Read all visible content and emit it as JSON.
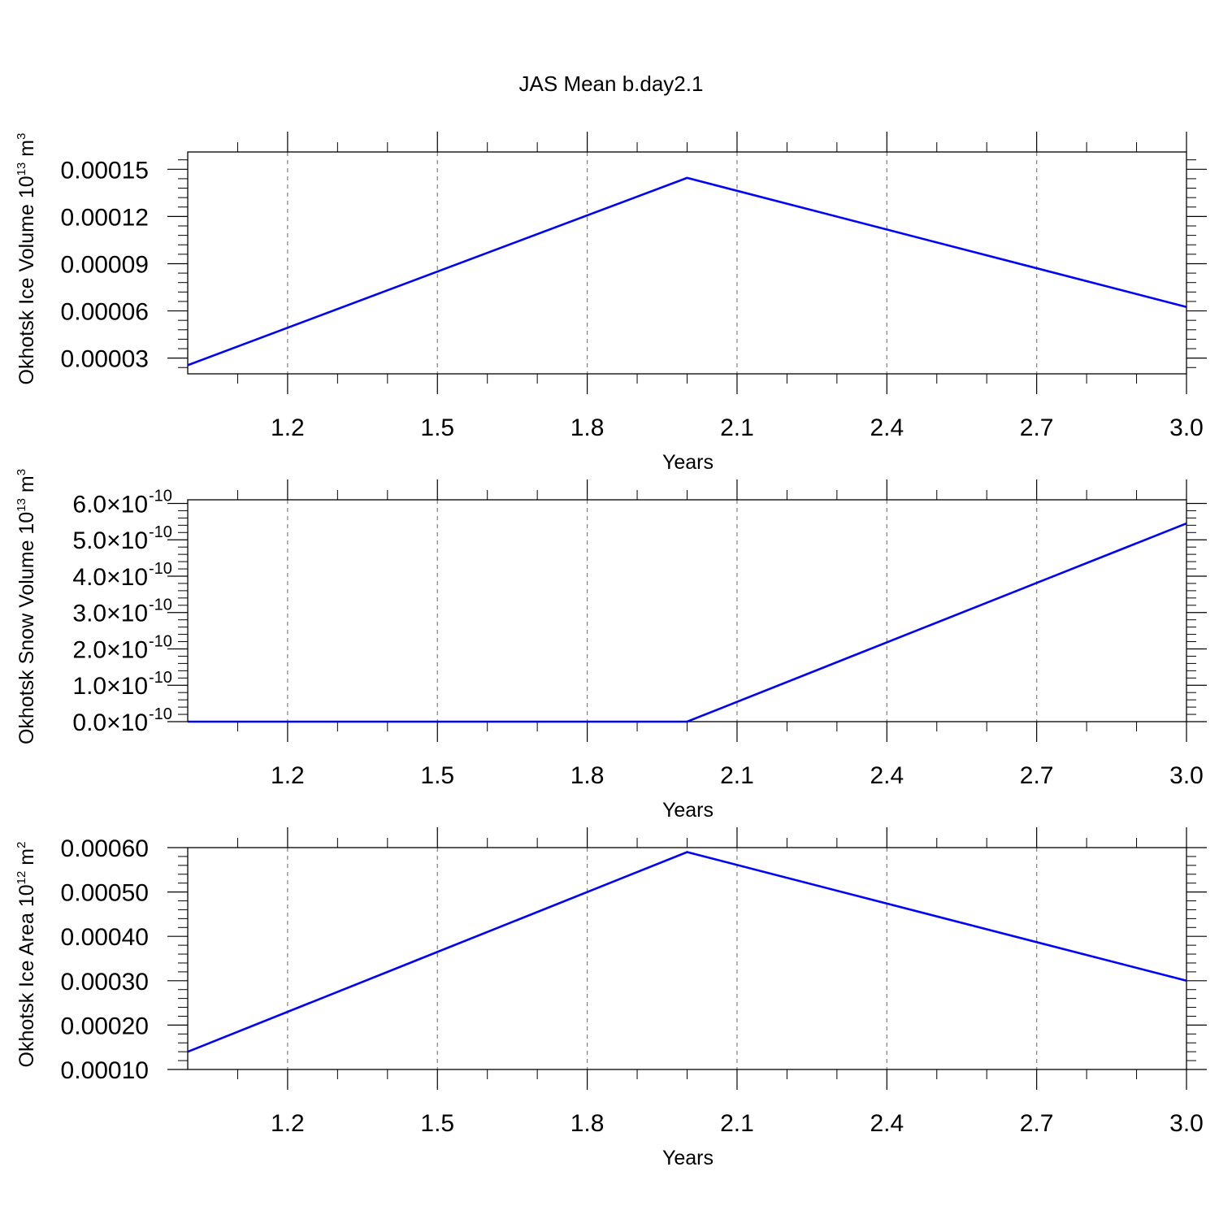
{
  "title": "JAS Mean b.day2.1",
  "colors": {
    "line": "#0000ff",
    "axis": "#000000",
    "grid": "#808080"
  },
  "chart_data": [
    {
      "type": "line",
      "xlabel": "Years",
      "ylabel_main": "Okhotsk Ice Volume 10",
      "ylabel_exp": "13",
      "ylabel_unit": " m",
      "ylabel_unit_exp": "3",
      "xlim": [
        1.0,
        3.0
      ],
      "ylim": [
        2e-05,
        0.000161
      ],
      "x_ticks": [
        1.2,
        1.5,
        1.8,
        2.1,
        2.4,
        2.7,
        3.0
      ],
      "x_tick_labels": [
        "1.2",
        "1.5",
        "1.8",
        "2.1",
        "2.4",
        "2.7",
        "3.0"
      ],
      "y_ticks": [
        3e-05,
        6e-05,
        9e-05,
        0.00012,
        0.00015
      ],
      "y_tick_labels": [
        "0.00003",
        "0.00006",
        "0.00009",
        "0.00012",
        "0.00015"
      ],
      "x": [
        1.0,
        2.0,
        3.0
      ],
      "y": [
        2.55e-05,
        0.0001445,
        6.25e-05
      ]
    },
    {
      "type": "line",
      "xlabel": "Years",
      "ylabel_main": "Okhotsk Snow Volume 10",
      "ylabel_exp": "13",
      "ylabel_unit": " m",
      "ylabel_unit_exp": "3",
      "xlim": [
        1.0,
        3.0
      ],
      "ylim": [
        0.0,
        6.1e-10
      ],
      "x_ticks": [
        1.2,
        1.5,
        1.8,
        2.1,
        2.4,
        2.7,
        3.0
      ],
      "x_tick_labels": [
        "1.2",
        "1.5",
        "1.8",
        "2.1",
        "2.4",
        "2.7",
        "3.0"
      ],
      "y_ticks": [
        0.0,
        1e-10,
        2e-10,
        3e-10,
        4e-10,
        5e-10,
        6e-10
      ],
      "y_tick_labels": [
        "0.0×10",
        "1.0×10",
        "2.0×10",
        "3.0×10",
        "4.0×10",
        "5.0×10",
        "6.0×10"
      ],
      "y_tick_exponent": "-10",
      "x": [
        1.0,
        2.0,
        3.0
      ],
      "y": [
        0.0,
        0.0,
        5.45e-10
      ]
    },
    {
      "type": "line",
      "xlabel": "Years",
      "ylabel_main": "Okhotsk Ice Area 10",
      "ylabel_exp": "12",
      "ylabel_unit": " m",
      "ylabel_unit_exp": "2",
      "xlim": [
        1.0,
        3.0
      ],
      "ylim": [
        0.0001,
        0.0006
      ],
      "x_ticks": [
        1.2,
        1.5,
        1.8,
        2.1,
        2.4,
        2.7,
        3.0
      ],
      "x_tick_labels": [
        "1.2",
        "1.5",
        "1.8",
        "2.1",
        "2.4",
        "2.7",
        "3.0"
      ],
      "y_ticks": [
        0.0001,
        0.0002,
        0.0003,
        0.0004,
        0.0005,
        0.0006
      ],
      "y_tick_labels": [
        "0.00010",
        "0.00020",
        "0.00030",
        "0.00040",
        "0.00050",
        "0.00060"
      ],
      "x": [
        1.0,
        2.0,
        3.0
      ],
      "y": [
        0.00014,
        0.00059,
        0.0003
      ]
    }
  ]
}
